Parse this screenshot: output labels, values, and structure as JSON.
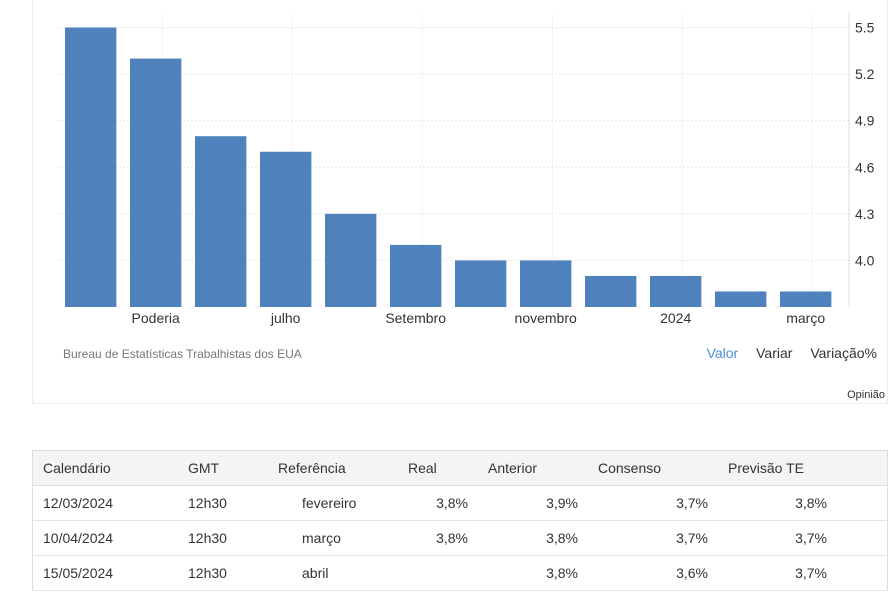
{
  "chart_data": {
    "type": "bar",
    "categories": [
      "",
      "Poderia",
      "",
      "julho",
      "",
      "Setembro",
      "",
      "novembro",
      "",
      "2024",
      "",
      "março"
    ],
    "values": [
      5.5,
      5.3,
      4.8,
      4.7,
      4.3,
      4.1,
      4.0,
      4.0,
      3.9,
      3.9,
      3.8,
      3.8
    ],
    "y_ticks": [
      "5.5",
      "5.2",
      "4.9",
      "4.6",
      "4.3",
      "4.0"
    ],
    "ylim": [
      3.7,
      5.6
    ],
    "bar_color": "#4f81bd",
    "grid": true
  },
  "source": "Bureau de Estatísticas Trabalhistas dos EUA",
  "modes": [
    "Valor",
    "Variar",
    "Variação%"
  ],
  "opinion": "Opinião",
  "calendar": {
    "headers": [
      "Calendário",
      "GMT",
      "Referência",
      "Real",
      "Anterior",
      "Consenso",
      "Previsão TE"
    ],
    "rows": [
      [
        "12/03/2024",
        "12h30",
        "fevereiro",
        "3,8%",
        "3,9%",
        "3,7%",
        "3,8%"
      ],
      [
        "10/04/2024",
        "12h30",
        "março",
        "3,8%",
        "3,8%",
        "3,7%",
        "3,7%"
      ],
      [
        "15/05/2024",
        "12h30",
        "abril",
        "",
        "3,8%",
        "3,6%",
        "3,7%"
      ]
    ]
  },
  "colors": {
    "accent": "#4a90d9"
  }
}
